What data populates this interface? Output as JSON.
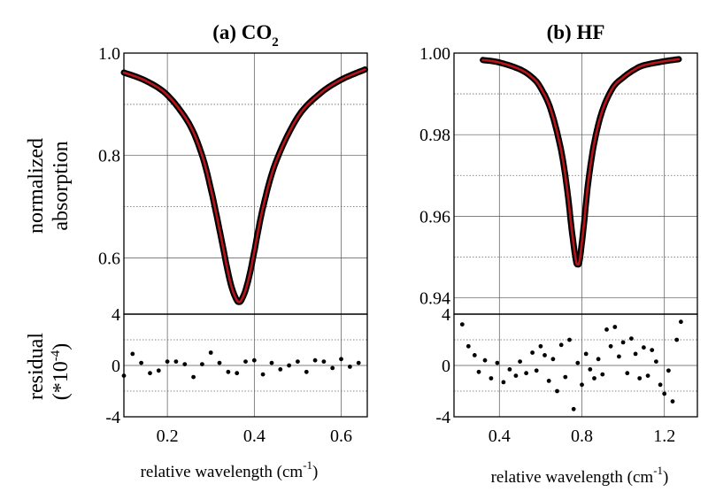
{
  "chart_data": [
    {
      "panel": "a",
      "type": "line",
      "title": "(a) CO",
      "title_sub": "2",
      "ylabel": [
        "normalized",
        "absorption"
      ],
      "xlabel": "relative  wavelength (cm",
      "xlabel_sup": "-1",
      "xlabel_close": ")",
      "xlim": [
        0.1,
        0.66
      ],
      "x_ticks": [
        0.2,
        0.4,
        0.6
      ],
      "x_tick_labels": [
        "0.2",
        "0.4",
        "0.6"
      ],
      "grid": true,
      "main": {
        "ylim": [
          0.49,
          1.0
        ],
        "y_ticks": [
          0.6,
          0.8,
          1.0
        ],
        "y_tick_labels": [
          "0.6",
          "0.8",
          "1.0"
        ],
        "series_colors": [
          "#000000",
          "#b8141c"
        ],
        "x": [
          0.1,
          0.15,
          0.2,
          0.25,
          0.28,
          0.3,
          0.32,
          0.34,
          0.35,
          0.36,
          0.365,
          0.37,
          0.38,
          0.39,
          0.4,
          0.42,
          0.45,
          0.5,
          0.55,
          0.6,
          0.655
        ],
        "y": [
          0.962,
          0.946,
          0.918,
          0.862,
          0.8,
          0.735,
          0.655,
          0.57,
          0.537,
          0.517,
          0.514,
          0.517,
          0.537,
          0.57,
          0.612,
          0.698,
          0.788,
          0.875,
          0.92,
          0.948,
          0.968
        ]
      },
      "residual": {
        "ylabel": [
          "residual",
          "(*10"
        ],
        "ylabel_sup": "-4",
        "ylabel_close": ")",
        "ylim": [
          -4,
          4
        ],
        "y_ticks": [
          -4,
          0,
          4
        ],
        "y_tick_labels": [
          "-4",
          "0",
          "4"
        ],
        "x": [
          0.1,
          0.12,
          0.14,
          0.16,
          0.18,
          0.2,
          0.22,
          0.24,
          0.26,
          0.28,
          0.3,
          0.32,
          0.34,
          0.36,
          0.38,
          0.4,
          0.42,
          0.44,
          0.46,
          0.48,
          0.5,
          0.52,
          0.54,
          0.56,
          0.58,
          0.6,
          0.62,
          0.64
        ],
        "y": [
          -0.8,
          0.9,
          0.2,
          -0.6,
          -0.4,
          0.3,
          0.3,
          0.1,
          -0.9,
          0.1,
          1.0,
          0.2,
          -0.5,
          -0.6,
          0.3,
          0.4,
          -0.7,
          0.2,
          -0.3,
          0.0,
          0.3,
          -0.5,
          0.4,
          0.3,
          -0.2,
          0.5,
          -0.1,
          0.2
        ]
      }
    },
    {
      "panel": "b",
      "type": "line",
      "title": "(b) HF",
      "ylabel": [],
      "xlabel": "relative  wavelength (cm",
      "xlabel_sup": "-1",
      "xlabel_close": ")",
      "xlim": [
        0.18,
        1.36
      ],
      "x_ticks": [
        0.4,
        0.8,
        1.2
      ],
      "x_tick_labels": [
        "0.4",
        "0.8",
        "1.2"
      ],
      "grid": true,
      "main": {
        "ylim": [
          0.936,
          1.0
        ],
        "y_ticks": [
          0.94,
          0.96,
          0.98,
          1.0
        ],
        "y_tick_labels": [
          "0.94",
          "0.96",
          "0.98",
          "1.00"
        ],
        "series_colors": [
          "#000000",
          "#b8141c"
        ],
        "x": [
          0.32,
          0.4,
          0.5,
          0.56,
          0.6,
          0.65,
          0.7,
          0.73,
          0.75,
          0.77,
          0.78,
          0.79,
          0.81,
          0.83,
          0.86,
          0.9,
          0.95,
          1.0,
          1.05,
          1.1,
          1.2,
          1.27
        ],
        "y": [
          0.9983,
          0.9977,
          0.996,
          0.994,
          0.9915,
          0.986,
          0.976,
          0.966,
          0.957,
          0.9495,
          0.9482,
          0.9495,
          0.958,
          0.968,
          0.978,
          0.986,
          0.9915,
          0.994,
          0.9958,
          0.997,
          0.998,
          0.9985
        ]
      },
      "residual": {
        "ylim": [
          -4,
          4
        ],
        "y_ticks": [
          -4,
          0,
          4
        ],
        "y_tick_labels": [
          "-4",
          "0",
          "4"
        ],
        "x": [
          0.22,
          0.25,
          0.28,
          0.3,
          0.33,
          0.36,
          0.39,
          0.42,
          0.45,
          0.48,
          0.5,
          0.53,
          0.56,
          0.58,
          0.6,
          0.62,
          0.64,
          0.66,
          0.68,
          0.7,
          0.72,
          0.74,
          0.76,
          0.78,
          0.8,
          0.82,
          0.84,
          0.86,
          0.88,
          0.9,
          0.92,
          0.94,
          0.96,
          0.98,
          1.0,
          1.02,
          1.04,
          1.06,
          1.08,
          1.1,
          1.12,
          1.14,
          1.16,
          1.18,
          1.2,
          1.22,
          1.24,
          1.26,
          1.28
        ],
        "y": [
          3.2,
          1.5,
          0.8,
          -0.5,
          0.4,
          -1.0,
          0.2,
          -1.3,
          -0.3,
          -0.8,
          0.3,
          -0.6,
          1.0,
          -0.4,
          1.5,
          0.8,
          -1.2,
          0.5,
          -2.0,
          1.6,
          -0.9,
          2.0,
          -3.4,
          0.2,
          -1.5,
          0.9,
          -0.3,
          -1.0,
          0.5,
          -0.7,
          2.8,
          1.5,
          3.0,
          0.7,
          1.8,
          -0.6,
          2.1,
          0.9,
          -1.0,
          1.4,
          -0.8,
          1.2,
          0.3,
          -1.5,
          -2.2,
          -0.4,
          -2.8,
          2.0,
          3.4
        ]
      }
    }
  ]
}
